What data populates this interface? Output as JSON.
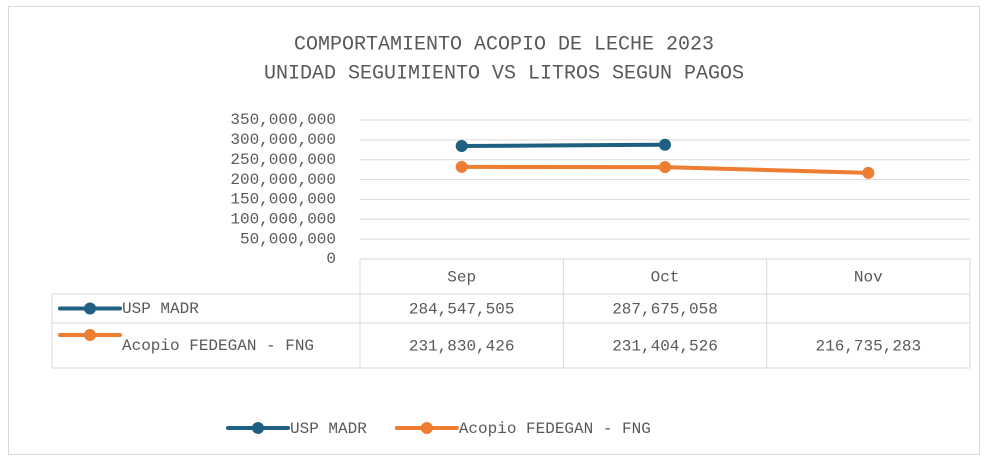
{
  "chart_data": {
    "type": "line",
    "title": "COMPORTAMIENTO ACOPIO DE LECHE 2023",
    "subtitle": "UNIDAD SEGUIMIENTO VS LITROS SEGUN PAGOS",
    "categories": [
      "Sep",
      "Oct",
      "Nov"
    ],
    "series": [
      {
        "name": "USP MADR",
        "color": "#1f5f82",
        "values": [
          284547505,
          287675058,
          null
        ],
        "value_labels": [
          "284,547,505",
          "287,675,058",
          null
        ]
      },
      {
        "name": "Acopio FEDEGAN - FNG",
        "color": "#ed7d31",
        "values": [
          231830426,
          231404526,
          216735283
        ],
        "value_labels": [
          "231,830,426",
          "231,404,526",
          "216,735,283"
        ]
      }
    ],
    "ylim": [
      0,
      350000000
    ],
    "yticks": [
      0,
      {
        "value": 50000000,
        "label": "50,000,000"
      },
      {
        "value": 100000000,
        "label": "100,000,000"
      },
      {
        "value": 150000000,
        "label": "150,000,000"
      },
      {
        "value": 200000000,
        "label": "200,000,000"
      },
      {
        "value": 250000000,
        "label": "250,000,000"
      },
      {
        "value": 300000000,
        "label": "300,000,000"
      },
      {
        "value": 350000000,
        "label": "350,000,000"
      }
    ],
    "grid": true,
    "legend": "bottom"
  }
}
